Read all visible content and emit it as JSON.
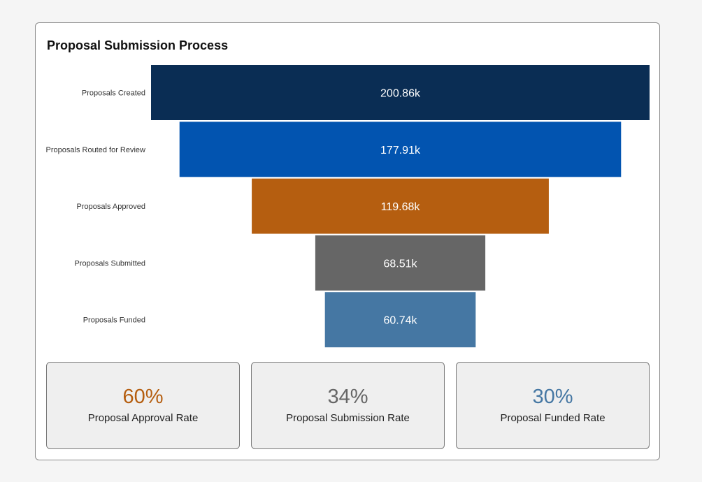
{
  "chart_data": {
    "type": "funnel",
    "title": "Proposal Submission Process",
    "categories": [
      "Proposals Created",
      "Proposals Routed for Review",
      "Proposals Approved",
      "Proposals Submitted",
      "Proposals Funded"
    ],
    "values": [
      200.86,
      177.91,
      119.68,
      68.51,
      60.74
    ],
    "value_labels": [
      "200.86k",
      "177.91k",
      "119.68k",
      "68.51k",
      "60.74k"
    ],
    "unit": "k",
    "colors": [
      "#0a2d54",
      "#0254b0",
      "#b55e10",
      "#666666",
      "#4577a3"
    ]
  },
  "kpis": [
    {
      "value": "60%",
      "label": "Proposal Approval Rate",
      "color": "#b55e10"
    },
    {
      "value": "34%",
      "label": "Proposal Submission Rate",
      "color": "#666666"
    },
    {
      "value": "30%",
      "label": "Proposal Funded Rate",
      "color": "#4577a3"
    }
  ]
}
